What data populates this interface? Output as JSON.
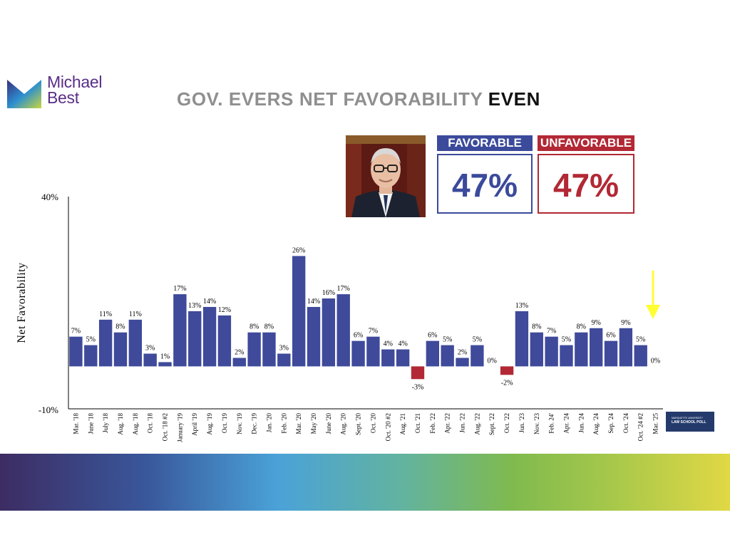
{
  "logo": {
    "line1": "Michael",
    "line2": "Best"
  },
  "title": {
    "main": "GOV. EVERS NET FAVORABILITY ",
    "accent": "EVEN"
  },
  "boxes": {
    "favorable": {
      "label": "FAVORABLE",
      "value": "47%",
      "color": "#3b4a9b"
    },
    "unfavorable": {
      "label": "UNFAVORABLE",
      "value": "47%",
      "color": "#b22834"
    }
  },
  "badge": {
    "line1": "MARQUETTE UNIVERSITY",
    "line2": "LAW SCHOOL POLL"
  },
  "chart_data": {
    "type": "bar",
    "ylabel": "Net Favorability",
    "ylim": [
      -10,
      40
    ],
    "ytick_labels": [
      "40%",
      "-10%"
    ],
    "grid": false,
    "positive_color": "#3f4a9b",
    "negative_color": "#b22834",
    "highlight_arrow_color": "#ffff33",
    "categories": [
      "Mar. '18",
      "June '18",
      "July '18",
      "Aug. '18",
      "Aug. '18",
      "Oct. '18",
      "Oct. '18 #2",
      "January '19",
      "April '19",
      "Aug. '19",
      "Oct. '19",
      "Nov. '19",
      "Dec. '19",
      "Jan. '20",
      "Feb. '20",
      "Mar. '20",
      "May '20",
      "June '20",
      "Aug. '20",
      "Sept. '20",
      "Oct. '20",
      "Oct. '20 #2",
      "Aug. '21",
      "Oct. '21",
      "Feb. '22",
      "Apr. '22",
      "Jun. '22",
      "Aug. '22",
      "Sept. '22",
      "Oct. '22",
      "Jun. '23",
      "Nov. '23",
      "Feb. 24'",
      "Apr. '24",
      "Jun. '24",
      "Aug. '24",
      "Sep. '24",
      "Oct. '24",
      "Oct. '24 #2",
      "Mar. '25"
    ],
    "values": [
      7,
      5,
      11,
      8,
      11,
      3,
      1,
      17,
      13,
      14,
      12,
      2,
      8,
      8,
      3,
      26,
      14,
      16,
      17,
      6,
      7,
      4,
      4,
      -3,
      6,
      5,
      2,
      5,
      0,
      -2,
      13,
      8,
      7,
      5,
      8,
      9,
      6,
      9,
      5,
      0
    ],
    "data_labels": [
      "7%",
      "5%",
      "11%",
      "8%",
      "11%",
      "3%",
      "1%",
      "17%",
      "13%",
      "14%",
      "12%",
      "2%",
      "8%",
      "8%",
      "3%",
      "26%",
      "14%",
      "16%",
      "17%",
      "6%",
      "7%",
      "4%",
      "4%",
      "-3%",
      "6%",
      "5%",
      "2%",
      "5%",
      "0%",
      "-2%",
      "13%",
      "8%",
      "7%",
      "5%",
      "8%",
      "9%",
      "6%",
      "9%",
      "5%",
      "0%"
    ]
  }
}
